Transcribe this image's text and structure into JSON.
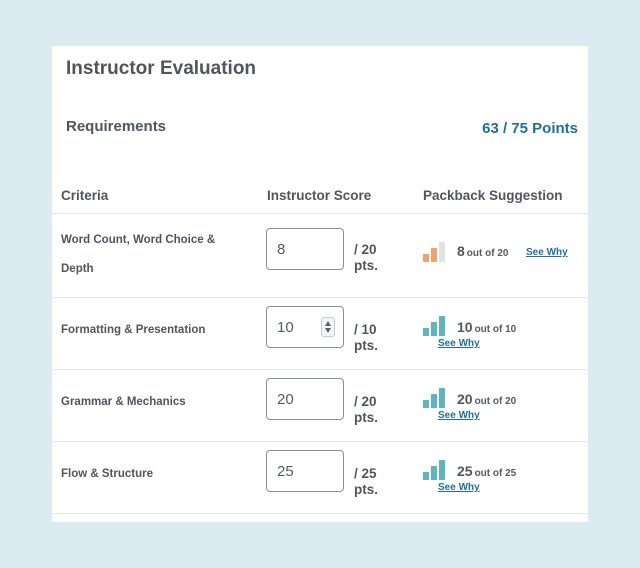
{
  "title": "Instructor Evaluation",
  "requirements_label": "Requirements",
  "points_summary": "63 / 75 Points",
  "columns": [
    "Criteria",
    "Instructor Score",
    "Packback Suggestion"
  ],
  "rows": [
    {
      "criteria": "Word Count, Word Choice & Depth",
      "score": "8",
      "max": "/ 20",
      "unit": "pts.",
      "suggestion": "8",
      "suggestion_out_of": "out of 20",
      "see_why": "See Why",
      "bar_color": "#f0a36e",
      "bar_levels": [
        0.4,
        0.7,
        1.0
      ],
      "bar_filled": [
        true,
        true,
        false
      ]
    },
    {
      "criteria": "Formatting & Presentation",
      "score": "10",
      "max": "/ 10",
      "unit": "pts.",
      "suggestion": "10",
      "suggestion_out_of": "out of 10",
      "see_why": "See Why",
      "bar_color": "#5fb5bf",
      "bar_levels": [
        0.4,
        0.7,
        1.0
      ],
      "bar_filled": [
        true,
        true,
        true
      ]
    },
    {
      "criteria": "Grammar & Mechanics",
      "score": "20",
      "max": "/ 20",
      "unit": "pts.",
      "suggestion": "20",
      "suggestion_out_of": "out of 20",
      "see_why": "See Why",
      "bar_color": "#5fb5bf",
      "bar_levels": [
        0.4,
        0.7,
        1.0
      ],
      "bar_filled": [
        true,
        true,
        true
      ]
    },
    {
      "criteria": "Flow & Structure",
      "score": "25",
      "max": "/ 25",
      "unit": "pts.",
      "suggestion": "25",
      "suggestion_out_of": "out of 25",
      "see_why": "See Why",
      "bar_color": "#5fb5bf",
      "bar_levels": [
        0.4,
        0.7,
        1.0
      ],
      "bar_filled": [
        true,
        true,
        true
      ]
    }
  ],
  "colors": {
    "accent": "#1f6f9a",
    "bar_empty": "#dfe3e6"
  }
}
